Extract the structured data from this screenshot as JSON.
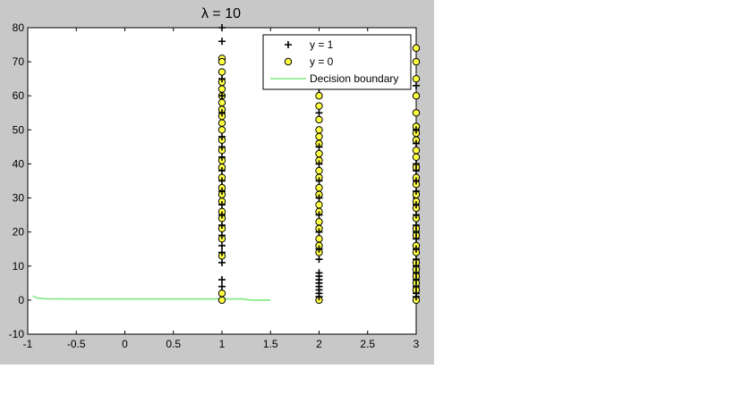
{
  "chart_data": {
    "type": "scatter",
    "title": "λ = 10",
    "xlabel": "",
    "ylabel": "",
    "xlim": [
      -1,
      3
    ],
    "ylim": [
      -10,
      80
    ],
    "xticks": [
      "-1",
      "-0.5",
      "0",
      "0.5",
      "1",
      "1.5",
      "2",
      "2.5",
      "3"
    ],
    "yticks": [
      "-10",
      "0",
      "10",
      "20",
      "30",
      "40",
      "50",
      "60",
      "70",
      "80"
    ],
    "grid": false,
    "legend_position": "top-right",
    "colors": {
      "figure_bg": "#c8c8c8",
      "axes_bg": "#ffffff",
      "positive_marker": "#000000",
      "negative_marker_fill": "#ffff44",
      "negative_marker_edge": "#000000",
      "boundary": "#80e880"
    },
    "series": [
      {
        "name": "y = 1",
        "marker": "plus",
        "points": [
          [
            1,
            80
          ],
          [
            1,
            76
          ],
          [
            1,
            65
          ],
          [
            1,
            60
          ],
          [
            1,
            55
          ],
          [
            1,
            48
          ],
          [
            1,
            45
          ],
          [
            1,
            42
          ],
          [
            1,
            38
          ],
          [
            1,
            35
          ],
          [
            1,
            32
          ],
          [
            1,
            28
          ],
          [
            1,
            25
          ],
          [
            1,
            22
          ],
          [
            1,
            19
          ],
          [
            1,
            16
          ],
          [
            1,
            14
          ],
          [
            1,
            11
          ],
          [
            1,
            6
          ],
          [
            1,
            4
          ],
          [
            2,
            62
          ],
          [
            2,
            55
          ],
          [
            2,
            45
          ],
          [
            2,
            40
          ],
          [
            2,
            35
          ],
          [
            2,
            30
          ],
          [
            2,
            25
          ],
          [
            2,
            20
          ],
          [
            2,
            15
          ],
          [
            2,
            12
          ],
          [
            2,
            8
          ],
          [
            2,
            7
          ],
          [
            2,
            6
          ],
          [
            2,
            5
          ],
          [
            2,
            4
          ],
          [
            2,
            3
          ],
          [
            2,
            2
          ],
          [
            2,
            1
          ],
          [
            3,
            63
          ],
          [
            3,
            50
          ],
          [
            3,
            46
          ],
          [
            3,
            40
          ],
          [
            3,
            38
          ],
          [
            3,
            35
          ],
          [
            3,
            32
          ],
          [
            3,
            28
          ],
          [
            3,
            25
          ],
          [
            3,
            22
          ],
          [
            3,
            20
          ],
          [
            3,
            18
          ],
          [
            3,
            15
          ],
          [
            3,
            12
          ],
          [
            3,
            10
          ],
          [
            3,
            8
          ],
          [
            3,
            6
          ],
          [
            3,
            4
          ],
          [
            3,
            2
          ],
          [
            3,
            1
          ]
        ]
      },
      {
        "name": "y = 0",
        "marker": "circle",
        "points": [
          [
            1,
            71
          ],
          [
            1,
            70
          ],
          [
            1,
            67
          ],
          [
            1,
            64
          ],
          [
            1,
            62
          ],
          [
            1,
            60
          ],
          [
            1,
            58
          ],
          [
            1,
            56
          ],
          [
            1,
            54
          ],
          [
            1,
            52
          ],
          [
            1,
            50
          ],
          [
            1,
            47
          ],
          [
            1,
            44
          ],
          [
            1,
            41
          ],
          [
            1,
            39
          ],
          [
            1,
            36
          ],
          [
            1,
            33
          ],
          [
            1,
            31
          ],
          [
            1,
            29
          ],
          [
            1,
            26
          ],
          [
            1,
            24
          ],
          [
            1,
            21
          ],
          [
            1,
            18
          ],
          [
            1,
            13
          ],
          [
            1,
            2
          ],
          [
            1,
            0
          ],
          [
            2,
            64
          ],
          [
            2,
            60
          ],
          [
            2,
            57
          ],
          [
            2,
            53
          ],
          [
            2,
            50
          ],
          [
            2,
            48
          ],
          [
            2,
            46
          ],
          [
            2,
            43
          ],
          [
            2,
            41
          ],
          [
            2,
            38
          ],
          [
            2,
            36
          ],
          [
            2,
            33
          ],
          [
            2,
            31
          ],
          [
            2,
            28
          ],
          [
            2,
            26
          ],
          [
            2,
            23
          ],
          [
            2,
            21
          ],
          [
            2,
            18
          ],
          [
            2,
            16
          ],
          [
            2,
            14
          ],
          [
            2,
            0
          ],
          [
            3,
            74
          ],
          [
            3,
            70
          ],
          [
            3,
            65
          ],
          [
            3,
            60
          ],
          [
            3,
            55
          ],
          [
            3,
            51
          ],
          [
            3,
            49
          ],
          [
            3,
            47
          ],
          [
            3,
            44
          ],
          [
            3,
            42
          ],
          [
            3,
            39
          ],
          [
            3,
            36
          ],
          [
            3,
            34
          ],
          [
            3,
            31
          ],
          [
            3,
            29
          ],
          [
            3,
            27
          ],
          [
            3,
            24
          ],
          [
            3,
            21
          ],
          [
            3,
            19
          ],
          [
            3,
            16
          ],
          [
            3,
            14
          ],
          [
            3,
            11
          ],
          [
            3,
            9
          ],
          [
            3,
            7
          ],
          [
            3,
            5
          ],
          [
            3,
            3
          ],
          [
            3,
            0
          ]
        ]
      },
      {
        "name": "Decision boundary",
        "marker": "line",
        "points": [
          [
            -0.95,
            1.2
          ],
          [
            -0.9,
            0.6
          ],
          [
            -0.8,
            0.4
          ],
          [
            -0.5,
            0.3
          ],
          [
            0,
            0.3
          ],
          [
            0.5,
            0.3
          ],
          [
            0.9,
            0.3
          ],
          [
            1.0,
            0.4
          ],
          [
            1.1,
            0.3
          ],
          [
            1.2,
            0.4
          ],
          [
            1.3,
            0.0
          ],
          [
            1.5,
            0.0
          ]
        ]
      }
    ]
  }
}
